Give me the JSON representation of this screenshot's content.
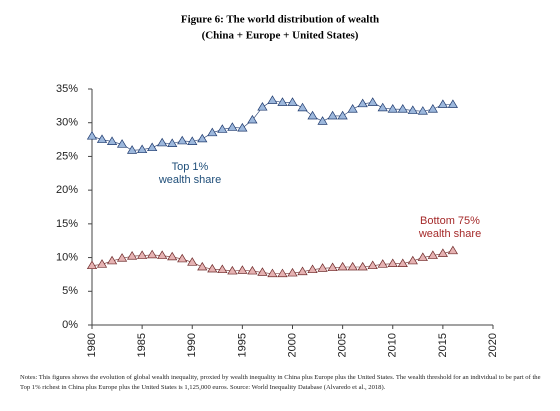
{
  "chart_data": {
    "type": "line",
    "title": "Figure 6: The world distribution of wealth",
    "subtitle": "(China + Europe + United States)",
    "x": [
      1980,
      1981,
      1982,
      1983,
      1984,
      1985,
      1986,
      1987,
      1988,
      1989,
      1990,
      1991,
      1992,
      1993,
      1994,
      1995,
      1996,
      1997,
      1998,
      1999,
      2000,
      2001,
      2002,
      2003,
      2004,
      2005,
      2006,
      2007,
      2008,
      2009,
      2010,
      2011,
      2012,
      2013,
      2014,
      2015,
      2016
    ],
    "series": [
      {
        "label": [
          "Top 1%",
          "wealth share"
        ],
        "color": "#9db8dc",
        "edge": "#1f3a6e",
        "label_color": "#1f4e79",
        "values": [
          28.0,
          27.5,
          27.2,
          26.8,
          25.9,
          26.0,
          26.3,
          27.0,
          26.9,
          27.3,
          27.2,
          27.6,
          28.5,
          29.0,
          29.3,
          29.2,
          30.4,
          32.3,
          33.3,
          33.0,
          33.0,
          32.2,
          31.0,
          30.2,
          31.0,
          31.0,
          32.0,
          32.8,
          33.0,
          32.2,
          32.0,
          32.0,
          31.8,
          31.7,
          32.0,
          32.7,
          32.7
        ]
      },
      {
        "label": [
          "Bottom 75%",
          "wealth share"
        ],
        "color": "#e6b3b3",
        "edge": "#6e2a2a",
        "label_color": "#a52a2a",
        "values": [
          8.8,
          9.0,
          9.5,
          9.9,
          10.2,
          10.3,
          10.4,
          10.3,
          10.1,
          9.8,
          9.3,
          8.6,
          8.3,
          8.2,
          8.0,
          8.1,
          8.0,
          7.8,
          7.6,
          7.6,
          7.7,
          7.9,
          8.2,
          8.4,
          8.5,
          8.6,
          8.6,
          8.6,
          8.8,
          9.0,
          9.1,
          9.1,
          9.5,
          10.0,
          10.3,
          10.6,
          11.0
        ]
      }
    ],
    "xlim": [
      1980,
      2020
    ],
    "xticks": [
      1980,
      1985,
      1990,
      1995,
      2000,
      2005,
      2010,
      2015,
      2020
    ],
    "ylim": [
      0,
      35
    ],
    "yticks": [
      {
        "value": 0,
        "label": "0%"
      },
      {
        "value": 5,
        "label": "5%"
      },
      {
        "value": 10,
        "label": "10%"
      },
      {
        "value": 15,
        "label": "15%"
      },
      {
        "value": 20,
        "label": "20%"
      },
      {
        "value": 25,
        "label": "25%"
      },
      {
        "value": 30,
        "label": "30%"
      },
      {
        "value": 35,
        "label": "35%"
      }
    ],
    "notes": "Notes: This figures shows the evolution of global wealth inequality, proxied by wealth inequality in China plus Europe plus the United States. The wealth threshold for an individual to be part of the Top 1% richest in China plus Europe plus the United States is 1,125,000 euros. Source: World Inequality Database (Alvaredo et al., 2018)."
  }
}
